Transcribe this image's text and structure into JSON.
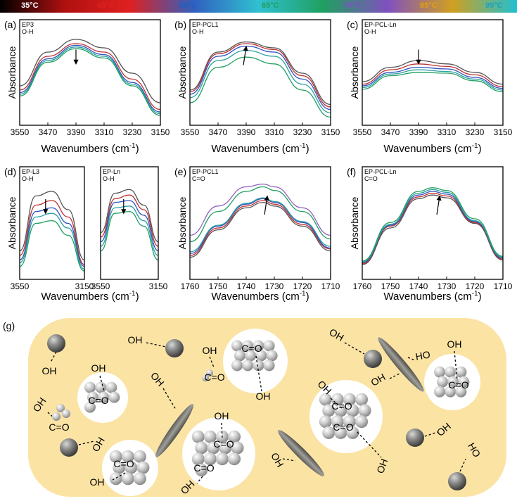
{
  "colorbar": {
    "stops": [
      "#000000",
      "#b01010",
      "#e02020",
      "#3060c0",
      "#30c0d0",
      "#20a060",
      "#8050c0",
      "#d0a020",
      "#20c0d0"
    ],
    "labels": [
      "35°C",
      "45°C",
      "55°C",
      "65°C",
      "75°C",
      "85°C",
      "95°C"
    ],
    "label_colors": [
      "#ffffff",
      "#e02020",
      "#2060c0",
      "#20a060",
      "#8050c0",
      "#e0a010",
      "#20a0c0"
    ]
  },
  "temperature_colors": [
    "#555555",
    "#c03030",
    "#3050c0",
    "#2aa0a0",
    "#20a060",
    "#9060c0",
    "#d0a020",
    "#20b0c8"
  ],
  "common": {
    "absorbance_label": "Absorbance",
    "wavenumbers_label": "Wavenumbers (cm",
    "wavenumbers_sup": "-1",
    "wavenumbers_close": ")"
  },
  "chart_data": [
    {
      "id": "a",
      "panel_label": "(a)",
      "type": "line",
      "tag1": "EP3",
      "tag2": "O-H",
      "xlim": [
        3550,
        3150
      ],
      "xticks": [
        "3550",
        "3470",
        "3390",
        "3310",
        "3230",
        "3150"
      ],
      "arrow": "down",
      "x": [
        3550,
        3470,
        3390,
        3310,
        3230,
        3150
      ],
      "series": [
        {
          "values": [
            0.4,
            0.8,
            0.95,
            0.85,
            0.55,
            0.2
          ]
        },
        {
          "values": [
            0.35,
            0.75,
            0.9,
            0.8,
            0.48,
            0.12
          ]
        },
        {
          "values": [
            0.32,
            0.72,
            0.88,
            0.77,
            0.44,
            0.09
          ]
        },
        {
          "values": [
            0.3,
            0.7,
            0.86,
            0.75,
            0.42,
            0.07
          ]
        },
        {
          "values": [
            0.28,
            0.68,
            0.84,
            0.73,
            0.4,
            0.05
          ]
        }
      ]
    },
    {
      "id": "b",
      "panel_label": "(b)",
      "type": "line",
      "tag1": "EP-PCL1",
      "tag2": "O-H",
      "xlim": [
        3550,
        3150
      ],
      "xticks": [
        "3550",
        "3470",
        "3390",
        "3310",
        "3230",
        "3150"
      ],
      "arrow": "up",
      "x": [
        3550,
        3470,
        3390,
        3310,
        3230,
        3150
      ],
      "series": [
        {
          "values": [
            0.35,
            0.8,
            0.92,
            0.85,
            0.55,
            0.18
          ]
        },
        {
          "values": [
            0.33,
            0.78,
            0.9,
            0.83,
            0.52,
            0.15
          ]
        },
        {
          "values": [
            0.3,
            0.75,
            0.87,
            0.8,
            0.48,
            0.12
          ]
        },
        {
          "values": [
            0.26,
            0.7,
            0.82,
            0.75,
            0.42,
            0.08
          ]
        },
        {
          "values": [
            0.2,
            0.62,
            0.74,
            0.66,
            0.35,
            0.03
          ]
        }
      ]
    },
    {
      "id": "c",
      "panel_label": "(c)",
      "type": "line",
      "tag1": "EP-PCL-Ln",
      "tag2": "O-H",
      "xlim": [
        3550,
        3150
      ],
      "xticks": [
        "3550",
        "3470",
        "3390",
        "3310",
        "3230",
        "3150"
      ],
      "arrow": "down",
      "x": [
        3550,
        3470,
        3390,
        3310,
        3230,
        3150
      ],
      "series": [
        {
          "values": [
            0.45,
            0.62,
            0.7,
            0.66,
            0.56,
            0.42
          ]
        },
        {
          "values": [
            0.42,
            0.59,
            0.66,
            0.63,
            0.53,
            0.39
          ]
        },
        {
          "values": [
            0.4,
            0.56,
            0.62,
            0.6,
            0.5,
            0.37
          ]
        },
        {
          "values": [
            0.38,
            0.54,
            0.59,
            0.57,
            0.48,
            0.35
          ]
        },
        {
          "values": [
            0.36,
            0.52,
            0.56,
            0.55,
            0.46,
            0.33
          ]
        }
      ]
    },
    {
      "id": "d1",
      "panel_label": "(d)",
      "type": "line",
      "tag1": "EP-L3",
      "tag2": "O-H",
      "xlim": [
        3550,
        3150
      ],
      "xticks": [
        "3550",
        "3150"
      ],
      "arrow": "down",
      "x": [
        3550,
        3450,
        3350,
        3250,
        3150
      ],
      "series": [
        {
          "values": [
            0.25,
            0.85,
            0.9,
            0.7,
            0.15
          ]
        },
        {
          "values": [
            0.2,
            0.75,
            0.8,
            0.62,
            0.1
          ]
        },
        {
          "values": [
            0.15,
            0.68,
            0.72,
            0.55,
            0.08
          ]
        },
        {
          "values": [
            0.12,
            0.62,
            0.66,
            0.5,
            0.05
          ]
        },
        {
          "values": [
            0.08,
            0.55,
            0.58,
            0.42,
            0.03
          ]
        }
      ]
    },
    {
      "id": "d2",
      "panel_label": "",
      "type": "line",
      "tag1": "EP-Ln",
      "tag2": "O-H",
      "xlim": [
        3550,
        3150
      ],
      "xticks": [
        "3550",
        "3150"
      ],
      "arrow": "down",
      "x": [
        3550,
        3450,
        3350,
        3250,
        3150
      ],
      "series": [
        {
          "values": [
            0.45,
            0.88,
            0.92,
            0.75,
            0.35
          ]
        },
        {
          "values": [
            0.4,
            0.82,
            0.86,
            0.7,
            0.3
          ]
        },
        {
          "values": [
            0.35,
            0.78,
            0.8,
            0.64,
            0.25
          ]
        },
        {
          "values": [
            0.3,
            0.72,
            0.74,
            0.58,
            0.2
          ]
        },
        {
          "values": [
            0.25,
            0.66,
            0.68,
            0.52,
            0.15
          ]
        }
      ]
    },
    {
      "id": "e",
      "panel_label": "(e)",
      "type": "line",
      "tag1": "EP-PCL1",
      "tag2": "C=O",
      "xlim": [
        1760,
        1710
      ],
      "xticks": [
        "1760",
        "1750",
        "1740",
        "1730",
        "1720",
        "1710"
      ],
      "arrow": "up",
      "x": [
        1760,
        1750,
        1740,
        1734,
        1730,
        1720,
        1710
      ],
      "series": [
        {
          "values": [
            0.18,
            0.48,
            0.72,
            0.78,
            0.74,
            0.52,
            0.25
          ]
        },
        {
          "values": [
            0.2,
            0.5,
            0.74,
            0.8,
            0.76,
            0.54,
            0.27
          ]
        },
        {
          "values": [
            0.22,
            0.52,
            0.76,
            0.82,
            0.78,
            0.56,
            0.28
          ]
        },
        {
          "values": [
            0.24,
            0.53,
            0.77,
            0.83,
            0.79,
            0.57,
            0.3
          ]
        },
        {
          "values": [
            0.35,
            0.68,
            0.9,
            0.95,
            0.91,
            0.68,
            0.38
          ]
        },
        {
          "values": [
            0.42,
            0.74,
            0.95,
            0.98,
            0.95,
            0.72,
            0.42
          ]
        }
      ]
    },
    {
      "id": "f",
      "panel_label": "(f)",
      "type": "line",
      "tag1": "EP-PCL-Ln",
      "tag2": "C=O",
      "xlim": [
        1760,
        1710
      ],
      "xticks": [
        "1760",
        "1750",
        "1740",
        "1730",
        "1720",
        "1710"
      ],
      "arrow": "up",
      "x": [
        1760,
        1750,
        1740,
        1735,
        1730,
        1720,
        1710
      ],
      "series": [
        {
          "values": [
            0.1,
            0.5,
            0.82,
            0.86,
            0.83,
            0.55,
            0.15
          ]
        },
        {
          "values": [
            0.11,
            0.52,
            0.84,
            0.88,
            0.85,
            0.56,
            0.16
          ]
        },
        {
          "values": [
            0.12,
            0.53,
            0.86,
            0.9,
            0.87,
            0.57,
            0.17
          ]
        },
        {
          "values": [
            0.13,
            0.54,
            0.88,
            0.92,
            0.89,
            0.58,
            0.18
          ]
        },
        {
          "values": [
            0.14,
            0.56,
            0.9,
            0.94,
            0.91,
            0.6,
            0.19
          ]
        }
      ]
    }
  ],
  "schematic": {
    "panel_label": "(g)",
    "oh": "OH",
    "ho": "HO",
    "co": "C=O"
  }
}
